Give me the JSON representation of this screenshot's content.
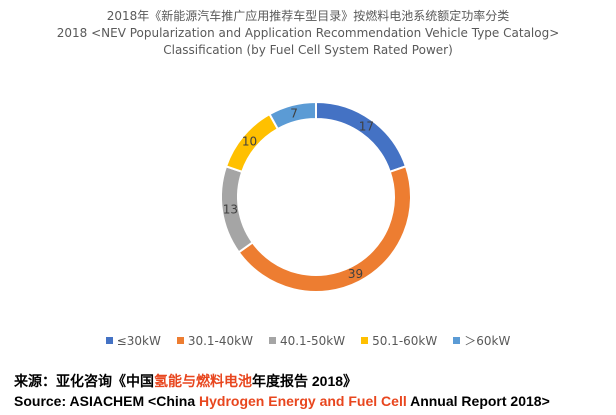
{
  "titles": {
    "line1": "2018年《新能源汽车推广应用推荐车型目录》按燃料电池系统额定功率分类",
    "line2": "2018 <NEV Popularization and Application Recommendation Vehicle Type Catalog>",
    "line3": "Classification (by Fuel Cell System Rated Power)"
  },
  "chart_data": {
    "type": "pie",
    "style": "doughnut",
    "title": "2018年《新能源汽车推广应用推荐车型目录》按燃料电池系统额定功率分类 / 2018 <NEV Popularization and Application Recommendation Vehicle Type Catalog> Classification (by Fuel Cell System Rated Power)",
    "categories": [
      "≤30kW",
      "30.1-40kW",
      "40.1-50kW",
      "50.1-60kW",
      "＞60kW"
    ],
    "values": [
      17,
      39,
      13,
      10,
      7
    ],
    "colors": [
      "#4472c4",
      "#ed7d31",
      "#a5a5a5",
      "#ffc000",
      "#5b9bd5"
    ],
    "legend_position": "bottom"
  },
  "source": {
    "cn_prefix": "来源：亚化咨询《中国",
    "cn_highlight": "氢能与燃料电池",
    "cn_suffix": "年度报告 2018》",
    "en_prefix": "Source: ASIACHEM <China ",
    "en_highlight": "Hydrogen Energy and Fuel Cell",
    "en_suffix": " Annual Report 2018>"
  }
}
